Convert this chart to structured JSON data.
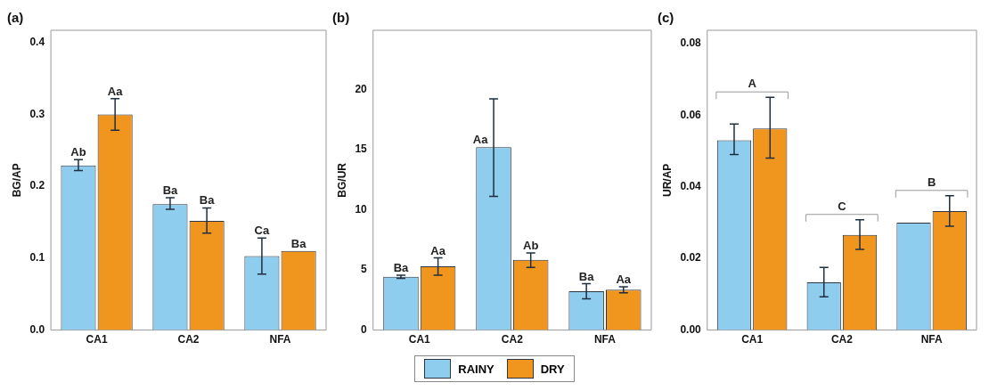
{
  "chart_data": [
    {
      "type": "bar",
      "title": "(a)",
      "ylabel": "BG/AP",
      "categories": [
        "CA1",
        "CA2",
        "NFA"
      ],
      "series": [
        {
          "color": "#8ecdee",
          "values": [
            0.229,
            0.175,
            0.103
          ],
          "errors": [
            [
              0.222,
              0.237
            ],
            [
              0.168,
              0.184
            ],
            [
              0.078,
              0.128
            ]
          ],
          "value_labels": [
            "Ab",
            "Ba",
            "Ca"
          ]
        },
        {
          "color": "#f0961e",
          "values": [
            0.3,
            0.152,
            0.11
          ],
          "errors": [
            [
              0.278,
              0.322
            ],
            [
              0.135,
              0.17
            ],
            null
          ],
          "value_labels": [
            "Aa",
            "Ba",
            "Ba"
          ]
        }
      ],
      "ylim": [
        0,
        0.417
      ],
      "yticks": [
        {
          "value": 0,
          "label": "0.0"
        },
        0.1,
        0.2,
        0.3,
        0.4
      ],
      "grid": false
    },
    {
      "type": "bar",
      "title": "(b)",
      "ylabel": "BG/UR",
      "categories": [
        "CA1",
        "CA2",
        "NFA"
      ],
      "series": [
        {
          "name": "RAINY",
          "color": "#8ecdee",
          "values": [
            4.43,
            15.2,
            3.23
          ],
          "errors": [
            [
              4.3,
              4.55
            ],
            [
              11.1,
              19.2
            ],
            [
              2.6,
              3.85
            ]
          ],
          "value_labels": [
            "Ba",
            "Aa",
            "Ba"
          ]
        },
        {
          "name": "DRY",
          "color": "#f0961e",
          "values": [
            5.3,
            5.83,
            3.35
          ],
          "errors": [
            [
              4.55,
              6.0
            ],
            [
              5.2,
              6.4
            ],
            [
              3.1,
              3.6
            ]
          ],
          "value_labels": [
            "Aa",
            "Ab",
            "Aa"
          ]
        }
      ],
      "ylim": [
        0,
        24.9
      ],
      "yticks": [
        0,
        5,
        10,
        15,
        20
      ],
      "grid": false,
      "legend": "bottom"
    },
    {
      "type": "bar",
      "title": "(c)",
      "ylabel": "UR/AP",
      "categories": [
        "CA1",
        "CA2",
        "NFA"
      ],
      "series": [
        {
          "color": "#8ecdee",
          "values": [
            0.053,
            0.0133,
            0.03
          ],
          "errors": [
            [
              0.049,
              0.0575
            ],
            [
              0.0093,
              0.0175
            ],
            null
          ]
        },
        {
          "color": "#f0961e",
          "values": [
            0.0563,
            0.0266,
            0.0332
          ],
          "errors": [
            [
              0.048,
              0.065
            ],
            [
              0.0225,
              0.0308
            ],
            [
              0.029,
              0.0375
            ]
          ]
        }
      ],
      "annotations": [
        "A",
        "C",
        "B"
      ],
      "ylim": [
        0,
        0.0837
      ],
      "yticks": [
        {
          "value": 0,
          "label": "0.00"
        },
        0.02,
        0.04,
        0.06,
        0.08
      ],
      "grid": false
    }
  ]
}
